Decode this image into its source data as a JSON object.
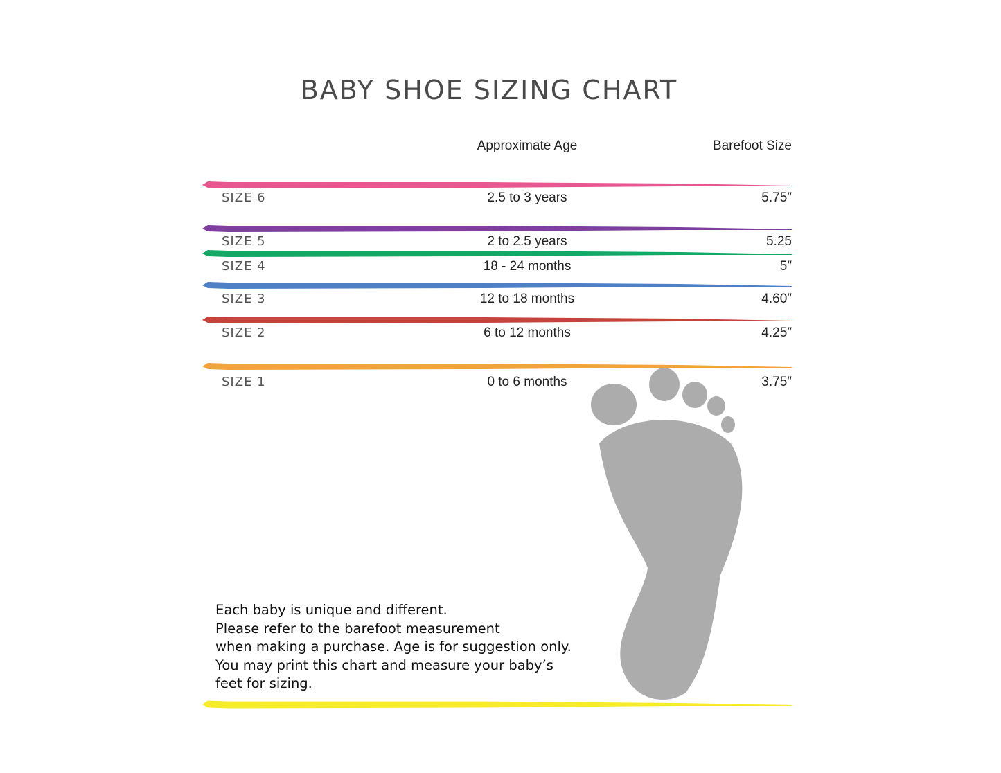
{
  "title": "BABY SHOE SIZING CHART",
  "headers": {
    "age": "Approximate Age",
    "barefoot": "Barefoot Size"
  },
  "rows": [
    {
      "size": "SIZE 6",
      "age": "2.5 to 3 years",
      "barefoot": "5.75″",
      "color": "#e8578f"
    },
    {
      "size": "SIZE 5",
      "age": "2 to 2.5 years",
      "barefoot": "5.25",
      "color": "#7e3fa0"
    },
    {
      "size": "SIZE 4",
      "age": "18 - 24 months",
      "barefoot": "5″",
      "color": "#12a865"
    },
    {
      "size": "SIZE 3",
      "age": "12 to 18 months",
      "barefoot": "4.60″",
      "color": "#4f80c6"
    },
    {
      "size": "SIZE 2",
      "age": "6 to 12 months",
      "barefoot": "4.25″",
      "color": "#c4443c"
    },
    {
      "size": "SIZE 1",
      "age": "0 to 6 months",
      "barefoot": "3.75″",
      "color": "#f2a43c"
    }
  ],
  "footer_color": "#f7ec2a",
  "footprint_color": "#9e9e9e",
  "note": [
    "Each baby is unique and different.",
    "Please refer to the barefoot measurement",
    "when making a purchase. Age is for suggestion only.",
    "You may print this chart and measure your baby’s",
    "feet for sizing."
  ]
}
